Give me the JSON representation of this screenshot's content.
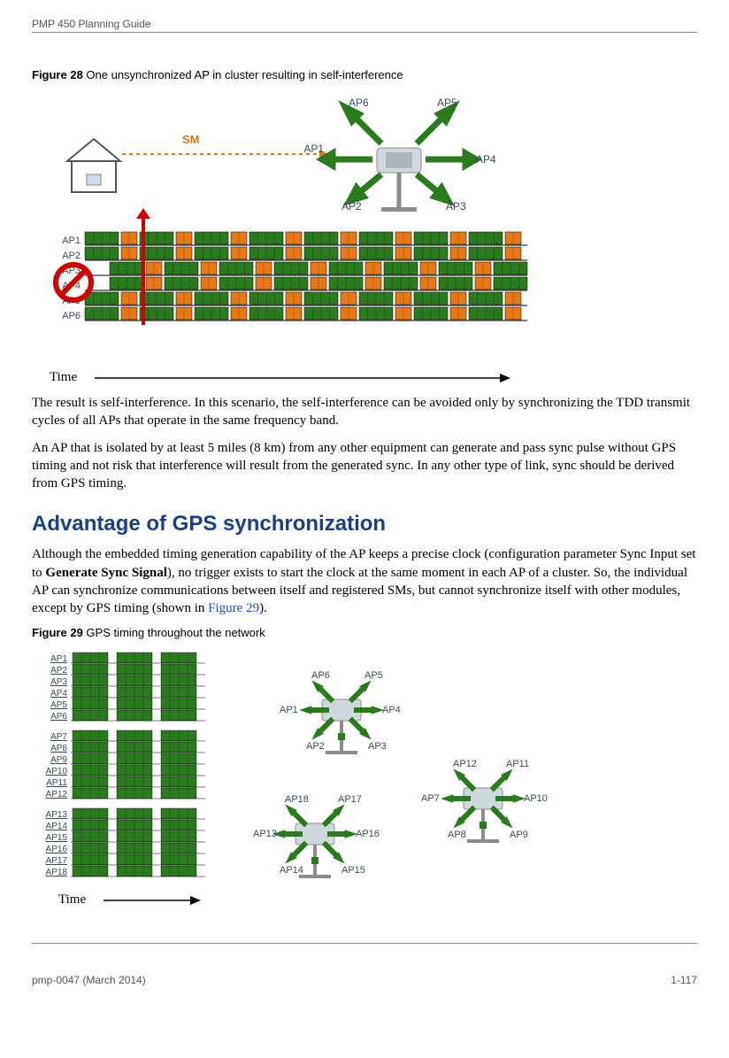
{
  "header": "PMP 450 Planning Guide",
  "fig28": {
    "label_bold": "Figure 28",
    "label_rest": " One unsynchronized AP in cluster resulting in self-interference",
    "sm_label": "SM",
    "ap_labels_top": [
      "AP6",
      "AP5",
      "AP1",
      "AP4",
      "AP2",
      "AP3"
    ],
    "row_labels": [
      "AP1",
      "AP2",
      "AP3",
      "AP4",
      "AP5",
      "AP6"
    ],
    "time_label": "Time",
    "colors": {
      "green": "#2a7a1e",
      "orange": "#e77817",
      "row_border": "#000",
      "arrow": "#000",
      "sm_orange": "#e77817",
      "red": "#d00000",
      "ap_text": "#3a4a5a",
      "tower": "#8c8c8c",
      "tower_top": "#cfd8dc"
    }
  },
  "para1": "The result is self-interference. In this scenario, the self-interference can be avoided only by synchronizing the TDD transmit cycles of all APs that operate in the same frequency band.",
  "para2": "An AP that is isolated by at least 5 miles (8 km) from any other equipment can generate and pass sync pulse without GPS timing and not risk that interference will result from the generated sync. In any other type of link, sync should be derived from GPS timing.",
  "section_title": "Advantage of GPS synchronization",
  "para3_a": "Although the embedded timing generation capability of the AP keeps a precise clock (configuration parameter Sync Input set to ",
  "para3_bold": "Generate Sync Signal",
  "para3_b": "), no trigger exists to start the clock at the same moment in each AP of a cluster. So, the individual AP can synchronize communications between itself and registered SMs, but cannot synchronize itself with other modules, except by GPS timing (shown in ",
  "para3_link": "Figure 29",
  "para3_c": ").",
  "fig29": {
    "label_bold": "Figure 29",
    "label_rest": " GPS timing throughout the network",
    "row_labels": [
      "AP1",
      "AP2",
      "AP3",
      "AP4",
      "AP5",
      "AP6",
      "AP7",
      "AP8",
      "AP9",
      "AP10",
      "AP11",
      "AP12",
      "AP13",
      "AP14",
      "AP15",
      "AP16",
      "AP17",
      "AP18"
    ],
    "cluster1": [
      "AP6",
      "AP5",
      "AP1",
      "AP4",
      "AP2",
      "AP3"
    ],
    "cluster2": [
      "AP18",
      "AP17",
      "AP13",
      "AP16",
      "AP14",
      "AP15"
    ],
    "cluster3": [
      "AP12",
      "AP11",
      "AP7",
      "AP10",
      "AP8",
      "AP9"
    ],
    "time_label": "Time"
  },
  "footer_left": "pmp-0047 (March 2014)",
  "footer_right": "1-117"
}
